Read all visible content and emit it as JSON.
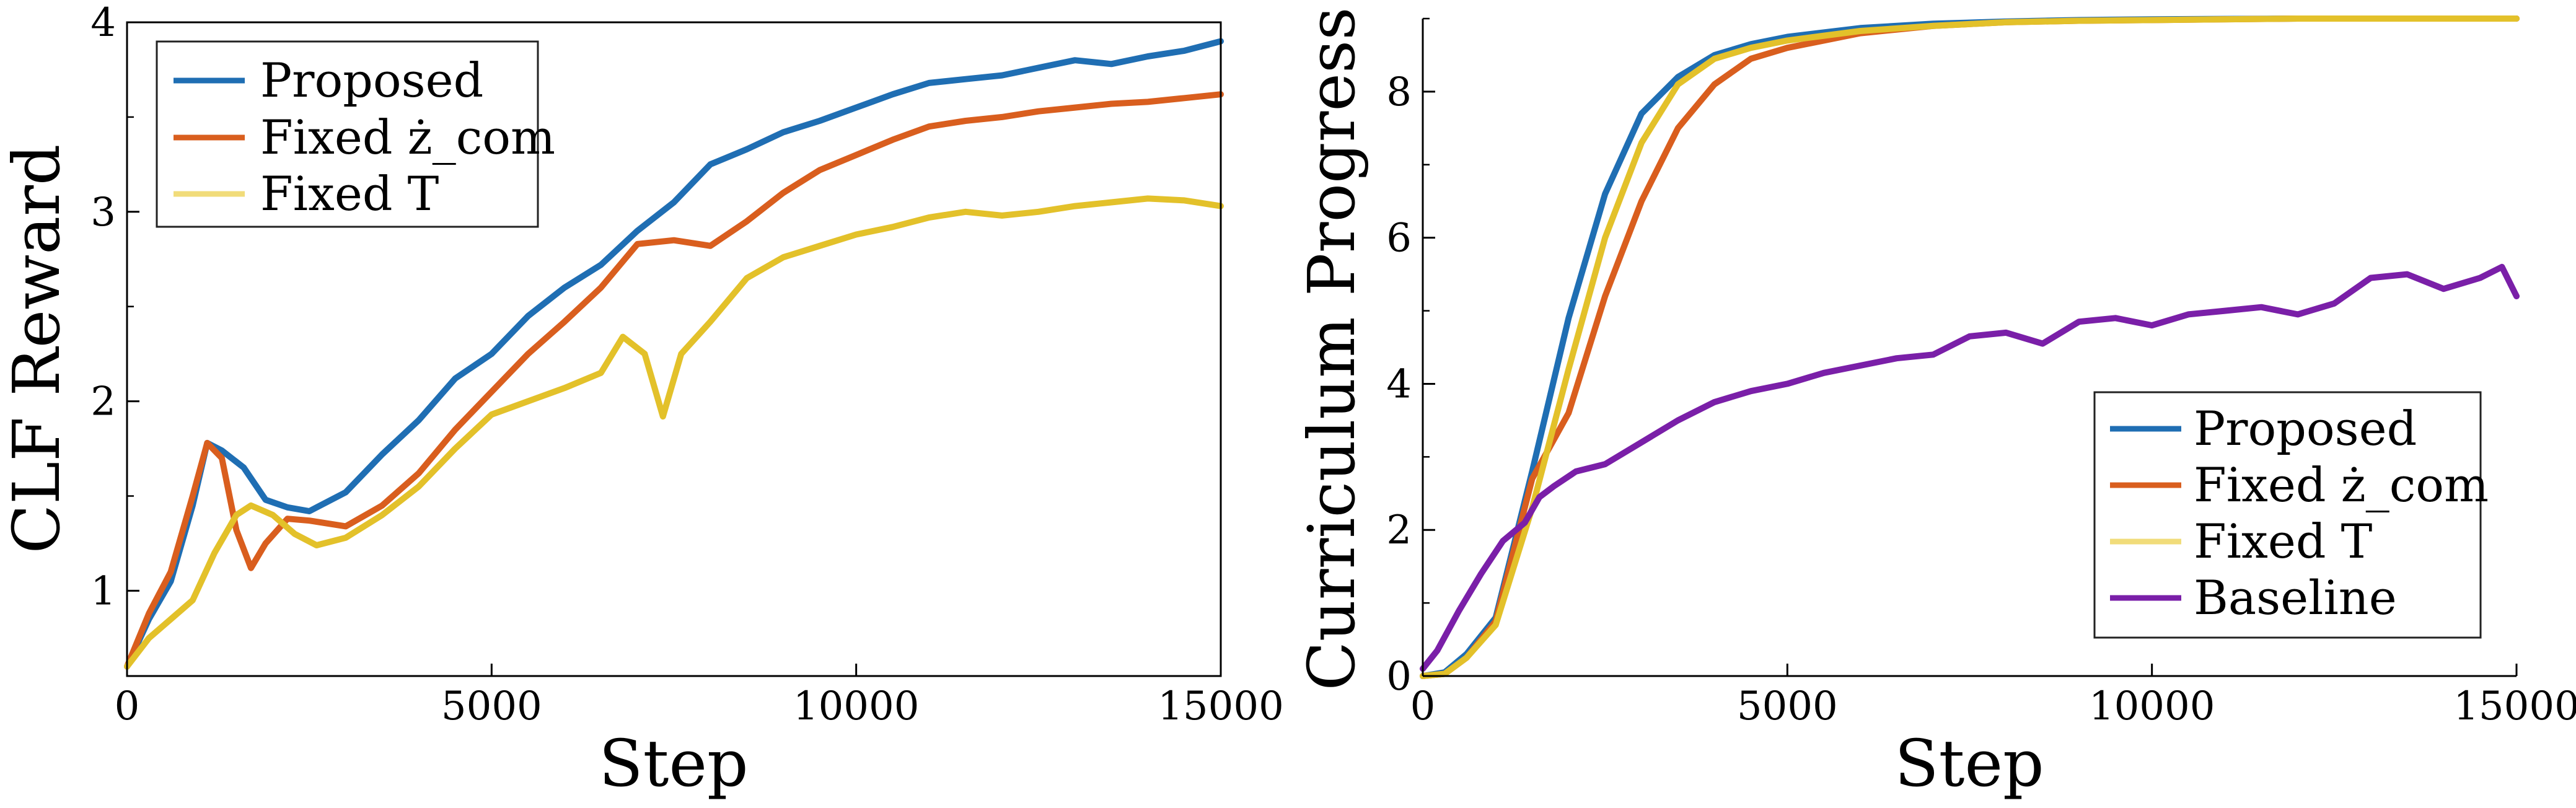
{
  "chart_data": [
    {
      "type": "line",
      "xlabel": "Step",
      "ylabel": "CLF Reward",
      "xlim": [
        0,
        15000
      ],
      "ylim": [
        0.55,
        4.0
      ],
      "xticks": [
        0,
        5000,
        10000,
        15000
      ],
      "yticks": [
        1,
        2,
        3,
        4
      ],
      "grid": false,
      "legend": {
        "position": "top-left"
      },
      "series": [
        {
          "name": "Proposed",
          "color": "#1f6eb3",
          "x": [
            0,
            300,
            600,
            900,
            1100,
            1300,
            1600,
            1900,
            2200,
            2500,
            3000,
            3500,
            4000,
            4500,
            5000,
            5500,
            6000,
            6500,
            7000,
            7500,
            8000,
            8500,
            9000,
            9500,
            10000,
            10500,
            11000,
            11500,
            12000,
            12500,
            13000,
            13500,
            14000,
            14500,
            15000
          ],
          "y": [
            0.6,
            0.85,
            1.05,
            1.45,
            1.78,
            1.74,
            1.65,
            1.48,
            1.44,
            1.42,
            1.52,
            1.72,
            1.9,
            2.12,
            2.25,
            2.45,
            2.6,
            2.72,
            2.9,
            3.05,
            3.25,
            3.33,
            3.42,
            3.48,
            3.55,
            3.62,
            3.68,
            3.7,
            3.72,
            3.76,
            3.8,
            3.78,
            3.82,
            3.85,
            3.9
          ]
        },
        {
          "name": "Fixed ż_com",
          "color": "#d95e1e",
          "x": [
            0,
            300,
            600,
            900,
            1100,
            1300,
            1500,
            1700,
            1900,
            2200,
            2500,
            3000,
            3500,
            4000,
            4500,
            5000,
            5500,
            6000,
            6500,
            7000,
            7500,
            8000,
            8500,
            9000,
            9500,
            10000,
            10500,
            11000,
            11500,
            12000,
            12500,
            13000,
            13500,
            14000,
            14500,
            15000
          ],
          "y": [
            0.6,
            0.88,
            1.1,
            1.5,
            1.78,
            1.7,
            1.32,
            1.12,
            1.25,
            1.38,
            1.37,
            1.34,
            1.45,
            1.62,
            1.85,
            2.05,
            2.25,
            2.42,
            2.6,
            2.83,
            2.85,
            2.82,
            2.95,
            3.1,
            3.22,
            3.3,
            3.38,
            3.45,
            3.48,
            3.5,
            3.53,
            3.55,
            3.57,
            3.58,
            3.6,
            3.62
          ]
        },
        {
          "name": "Fixed T",
          "color": "#e3c12a",
          "x": [
            0,
            300,
            600,
            900,
            1200,
            1500,
            1700,
            2000,
            2300,
            2600,
            3000,
            3500,
            4000,
            4500,
            5000,
            5500,
            6000,
            6500,
            6800,
            7100,
            7350,
            7600,
            8000,
            8500,
            9000,
            9500,
            10000,
            10500,
            11000,
            11500,
            12000,
            12500,
            13000,
            13500,
            14000,
            14500,
            15000
          ],
          "y": [
            0.6,
            0.75,
            0.85,
            0.95,
            1.2,
            1.4,
            1.45,
            1.4,
            1.3,
            1.24,
            1.28,
            1.4,
            1.55,
            1.75,
            1.93,
            2.0,
            2.07,
            2.15,
            2.34,
            2.25,
            1.92,
            2.25,
            2.42,
            2.65,
            2.76,
            2.82,
            2.88,
            2.92,
            2.97,
            3.0,
            2.98,
            3.0,
            3.03,
            3.05,
            3.07,
            3.06,
            3.03
          ]
        }
      ]
    },
    {
      "type": "line",
      "xlabel": "Step",
      "ylabel": "Curriculum Progress",
      "xlim": [
        0,
        15000
      ],
      "ylim": [
        0,
        9.0
      ],
      "xticks": [
        0,
        5000,
        10000,
        15000
      ],
      "yticks": [
        0,
        2,
        4,
        6,
        8
      ],
      "grid": false,
      "legend": {
        "position": "bottom-right"
      },
      "series": [
        {
          "name": "Proposed",
          "color": "#1f6eb3",
          "x": [
            0,
            300,
            600,
            1000,
            1500,
            2000,
            2500,
            3000,
            3500,
            4000,
            4500,
            5000,
            6000,
            7000,
            8000,
            9000,
            10000,
            12000,
            15000
          ],
          "y": [
            0.0,
            0.05,
            0.3,
            0.8,
            2.8,
            4.9,
            6.6,
            7.7,
            8.2,
            8.5,
            8.65,
            8.75,
            8.87,
            8.93,
            8.96,
            8.98,
            8.99,
            9.0,
            9.0
          ]
        },
        {
          "name": "Fixed ż_com",
          "color": "#d95e1e",
          "x": [
            0,
            300,
            600,
            1000,
            1500,
            2000,
            2500,
            3000,
            3500,
            4000,
            4500,
            5000,
            6000,
            7000,
            8000,
            9000,
            10000,
            12000,
            15000
          ],
          "y": [
            0.0,
            0.03,
            0.25,
            0.75,
            2.7,
            3.6,
            5.2,
            6.5,
            7.5,
            8.1,
            8.45,
            8.6,
            8.8,
            8.9,
            8.95,
            8.97,
            8.98,
            9.0,
            9.0
          ]
        },
        {
          "name": "Fixed T",
          "color": "#e3c12a",
          "x": [
            0,
            300,
            600,
            1000,
            1500,
            2000,
            2500,
            3000,
            3500,
            4000,
            4500,
            5000,
            6000,
            7000,
            8000,
            9000,
            10000,
            12000,
            15000
          ],
          "y": [
            0.0,
            0.03,
            0.25,
            0.7,
            2.3,
            4.2,
            6.0,
            7.3,
            8.1,
            8.45,
            8.6,
            8.7,
            8.83,
            8.9,
            8.95,
            8.97,
            8.98,
            9.0,
            9.0
          ]
        },
        {
          "name": "Baseline",
          "color": "#7a1fa8",
          "x": [
            0,
            200,
            500,
            800,
            1100,
            1400,
            1600,
            1800,
            2100,
            2500,
            3000,
            3500,
            4000,
            4500,
            5000,
            5500,
            6000,
            6500,
            7000,
            7500,
            8000,
            8500,
            9000,
            9500,
            10000,
            10500,
            11000,
            11500,
            12000,
            12500,
            13000,
            13500,
            14000,
            14500,
            14800,
            15000
          ],
          "y": [
            0.1,
            0.35,
            0.9,
            1.4,
            1.85,
            2.1,
            2.45,
            2.6,
            2.8,
            2.9,
            3.2,
            3.5,
            3.75,
            3.9,
            4.0,
            4.15,
            4.25,
            4.35,
            4.4,
            4.65,
            4.7,
            4.55,
            4.85,
            4.9,
            4.8,
            4.95,
            5.0,
            5.05,
            4.95,
            5.1,
            5.45,
            5.5,
            5.3,
            5.45,
            5.6,
            5.2
          ]
        }
      ]
    }
  ]
}
